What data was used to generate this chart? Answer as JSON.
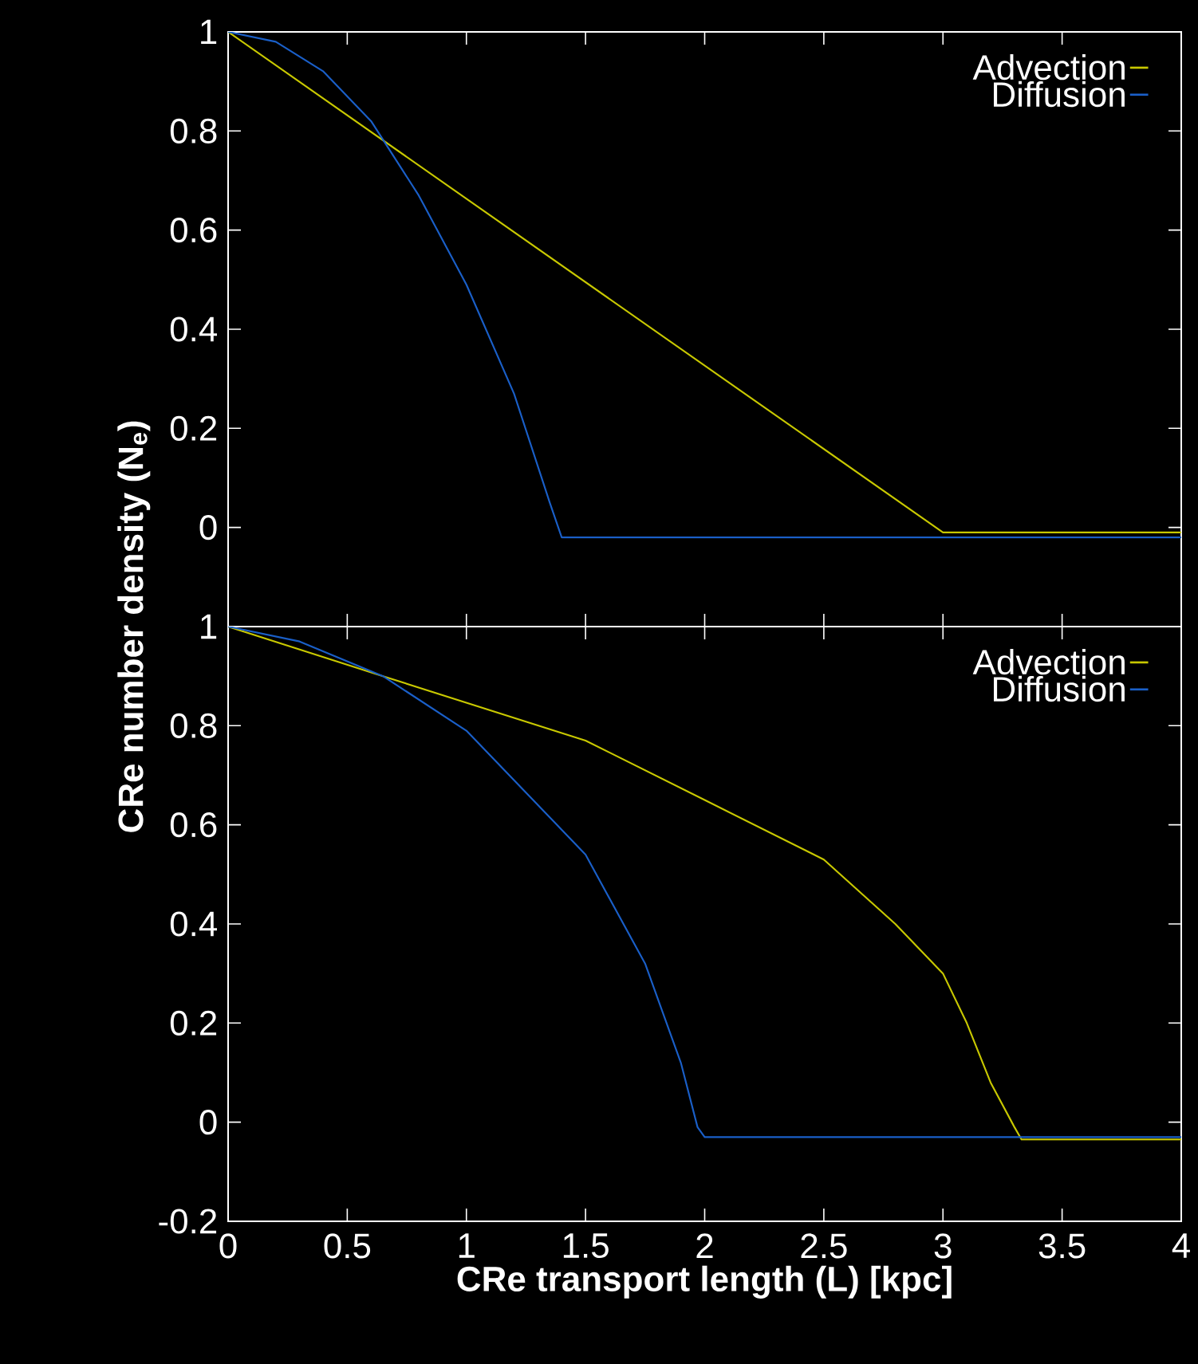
{
  "chart_data": [
    {
      "type": "line",
      "xlim": [
        0,
        4
      ],
      "xticks": [
        0,
        0.5,
        1,
        1.5,
        2,
        2.5,
        3,
        3.5,
        4
      ],
      "ylim": [
        -0.2,
        1
      ],
      "yticks": [
        0,
        0.2,
        0.4,
        0.6,
        0.8,
        1
      ],
      "tick_labels": "y",
      "legend": "top right",
      "grid": false,
      "series": [
        {
          "name": "Advection",
          "color": "#c8c800",
          "x": [
            0,
            3.0,
            3.02,
            4
          ],
          "values": [
            1,
            -0.01,
            -0.01,
            -0.01
          ]
        },
        {
          "name": "Diffusion",
          "color": "#1a5fc8",
          "x": [
            0,
            0.2,
            0.4,
            0.6,
            0.8,
            1.0,
            1.2,
            1.35,
            1.4,
            4
          ],
          "values": [
            1,
            0.98,
            0.92,
            0.82,
            0.67,
            0.49,
            0.27,
            0.05,
            -0.02,
            -0.02
          ]
        }
      ]
    },
    {
      "type": "line",
      "xlim": [
        0,
        4
      ],
      "xticks": [
        0,
        0.5,
        1,
        1.5,
        2,
        2.5,
        3,
        3.5,
        4
      ],
      "ylim": [
        -0.2,
        1
      ],
      "yticks": [
        -0.2,
        0,
        0.2,
        0.4,
        0.6,
        0.8,
        1
      ],
      "legend": "top right",
      "grid": false,
      "xlabel": "CRe transport length (L) [kpc]",
      "ylabel": "CRe number density (N$_{e}$)",
      "series": [
        {
          "name": "Advection",
          "color": "#c8c800",
          "x": [
            0,
            0.65,
            1.5,
            2.0,
            2.5,
            2.8,
            3.0,
            3.1,
            3.2,
            3.3,
            3.33,
            4
          ],
          "values": [
            1,
            0.9,
            0.77,
            0.65,
            0.53,
            0.4,
            0.3,
            0.2,
            0.08,
            -0.01,
            -0.035,
            -0.035
          ]
        },
        {
          "name": "Diffusion",
          "color": "#1a5fc8",
          "x": [
            0,
            0.3,
            0.65,
            1.0,
            1.5,
            1.75,
            1.9,
            1.97,
            2.0,
            4
          ],
          "values": [
            1,
            0.97,
            0.9,
            0.79,
            0.54,
            0.32,
            0.12,
            -0.01,
            -0.03,
            -0.03
          ]
        }
      ]
    }
  ]
}
